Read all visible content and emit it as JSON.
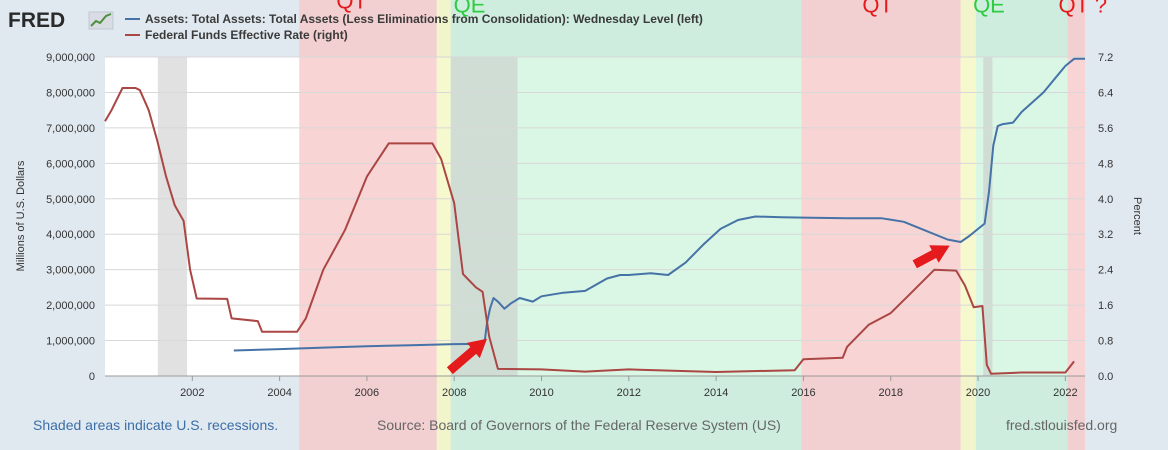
{
  "header": {
    "logo_text": "FRED",
    "logo_icon": "chart-line-icon"
  },
  "footer": {
    "recession_note": "Shaded areas indicate U.S. recessions.",
    "source": "Source: Board of Governors of the Federal Reserve System (US)",
    "site": "fred.stlouisfed.org"
  },
  "colors": {
    "assets": "#4572a7",
    "rate": "#aa4643",
    "qt_band": "#f7c6c6",
    "qe_band": "#c2f0d2",
    "bridge_band": "#f4f7c4",
    "recession_band": "#c8c8c8",
    "qt_label": "#e41a1c",
    "qe_label": "#2ecc40",
    "arrow": "#e41a1c"
  },
  "chart_data": {
    "type": "line",
    "x_range": [
      2000.0,
      2022.45
    ],
    "x_ticks": [
      {
        "value": 2002,
        "label": "2002"
      },
      {
        "value": 2004,
        "label": "2004"
      },
      {
        "value": 2006,
        "label": "2006"
      },
      {
        "value": 2008,
        "label": "2008"
      },
      {
        "value": 2010,
        "label": "2010"
      },
      {
        "value": 2012,
        "label": "2012"
      },
      {
        "value": 2014,
        "label": "2014"
      },
      {
        "value": 2016,
        "label": "2016"
      },
      {
        "value": 2018,
        "label": "2018"
      },
      {
        "value": 2020,
        "label": "2020"
      },
      {
        "value": 2022,
        "label": "2022"
      }
    ],
    "y_left": {
      "label": "Millions of U.S. Dollars",
      "range": [
        0,
        9000000
      ],
      "ticks": [
        {
          "value": 0,
          "label": "0"
        },
        {
          "value": 1000000,
          "label": "1,000,000"
        },
        {
          "value": 2000000,
          "label": "2,000,000"
        },
        {
          "value": 3000000,
          "label": "3,000,000"
        },
        {
          "value": 4000000,
          "label": "4,000,000"
        },
        {
          "value": 5000000,
          "label": "5,000,000"
        },
        {
          "value": 6000000,
          "label": "6,000,000"
        },
        {
          "value": 7000000,
          "label": "7,000,000"
        },
        {
          "value": 8000000,
          "label": "8,000,000"
        },
        {
          "value": 9000000,
          "label": "9,000,000"
        }
      ]
    },
    "y_right": {
      "label": "Percent",
      "range": [
        0,
        7.2
      ],
      "ticks": [
        {
          "value": 0,
          "label": "0.0"
        },
        {
          "value": 0.8,
          "label": "0.8"
        },
        {
          "value": 1.6,
          "label": "1.6"
        },
        {
          "value": 2.4,
          "label": "2.4"
        },
        {
          "value": 3.2,
          "label": "3.2"
        },
        {
          "value": 4.0,
          "label": "4.0"
        },
        {
          "value": 4.8,
          "label": "4.8"
        },
        {
          "value": 5.6,
          "label": "5.6"
        },
        {
          "value": 6.4,
          "label": "6.4"
        },
        {
          "value": 7.2,
          "label": "7.2"
        }
      ]
    },
    "legend_position": "top-left",
    "series": [
      {
        "name": "Assets: Total Assets: Total Assets (Less Eliminations from Consolidation): Wednesday Level (left)",
        "axis": "left",
        "points": [
          [
            2002.95,
            720000
          ],
          [
            2004.0,
            760000
          ],
          [
            2005.0,
            800000
          ],
          [
            2006.0,
            840000
          ],
          [
            2007.0,
            870000
          ],
          [
            2008.0,
            900000
          ],
          [
            2008.6,
            905000
          ],
          [
            2008.7,
            1000000
          ],
          [
            2008.75,
            1500000
          ],
          [
            2008.82,
            1900000
          ],
          [
            2008.9,
            2200000
          ],
          [
            2009.0,
            2100000
          ],
          [
            2009.15,
            1900000
          ],
          [
            2009.3,
            2050000
          ],
          [
            2009.5,
            2200000
          ],
          [
            2009.8,
            2100000
          ],
          [
            2010.0,
            2250000
          ],
          [
            2010.5,
            2350000
          ],
          [
            2011.0,
            2400000
          ],
          [
            2011.5,
            2750000
          ],
          [
            2011.8,
            2850000
          ],
          [
            2012.0,
            2850000
          ],
          [
            2012.5,
            2900000
          ],
          [
            2012.9,
            2850000
          ],
          [
            2013.3,
            3200000
          ],
          [
            2013.7,
            3700000
          ],
          [
            2014.1,
            4150000
          ],
          [
            2014.5,
            4400000
          ],
          [
            2014.9,
            4500000
          ],
          [
            2015.5,
            4480000
          ],
          [
            2016.0,
            4470000
          ],
          [
            2017.0,
            4450000
          ],
          [
            2017.8,
            4450000
          ],
          [
            2018.3,
            4350000
          ],
          [
            2018.8,
            4100000
          ],
          [
            2019.3,
            3850000
          ],
          [
            2019.6,
            3780000
          ],
          [
            2019.8,
            3950000
          ],
          [
            2020.05,
            4200000
          ],
          [
            2020.15,
            4300000
          ],
          [
            2020.25,
            5200000
          ],
          [
            2020.35,
            6500000
          ],
          [
            2020.45,
            7050000
          ],
          [
            2020.55,
            7100000
          ],
          [
            2020.8,
            7150000
          ],
          [
            2021.0,
            7450000
          ],
          [
            2021.5,
            8000000
          ],
          [
            2022.0,
            8750000
          ],
          [
            2022.2,
            8950000
          ],
          [
            2022.45,
            8950000
          ]
        ]
      },
      {
        "name": "Federal Funds Effective Rate (right)",
        "axis": "right",
        "points": [
          [
            2000.0,
            5.75
          ],
          [
            2000.15,
            6.0
          ],
          [
            2000.4,
            6.5
          ],
          [
            2000.7,
            6.5
          ],
          [
            2000.8,
            6.45
          ],
          [
            2001.0,
            6.0
          ],
          [
            2001.2,
            5.3
          ],
          [
            2001.4,
            4.5
          ],
          [
            2001.6,
            3.85
          ],
          [
            2001.8,
            3.5
          ],
          [
            2001.95,
            2.4
          ],
          [
            2002.1,
            1.75
          ],
          [
            2002.8,
            1.74
          ],
          [
            2002.9,
            1.3
          ],
          [
            2003.5,
            1.24
          ],
          [
            2003.6,
            1.0
          ],
          [
            2004.4,
            1.0
          ],
          [
            2004.6,
            1.3
          ],
          [
            2005.0,
            2.4
          ],
          [
            2005.5,
            3.3
          ],
          [
            2006.0,
            4.5
          ],
          [
            2006.5,
            5.25
          ],
          [
            2007.5,
            5.25
          ],
          [
            2007.7,
            4.9
          ],
          [
            2008.0,
            3.9
          ],
          [
            2008.2,
            2.3
          ],
          [
            2008.5,
            2.0
          ],
          [
            2008.65,
            1.9
          ],
          [
            2008.8,
            0.9
          ],
          [
            2009.0,
            0.16
          ],
          [
            2010.0,
            0.15
          ],
          [
            2011.0,
            0.1
          ],
          [
            2012.0,
            0.15
          ],
          [
            2014.0,
            0.09
          ],
          [
            2015.8,
            0.13
          ],
          [
            2016.0,
            0.38
          ],
          [
            2016.9,
            0.41
          ],
          [
            2017.0,
            0.66
          ],
          [
            2017.5,
            1.16
          ],
          [
            2018.0,
            1.42
          ],
          [
            2018.5,
            1.91
          ],
          [
            2019.0,
            2.4
          ],
          [
            2019.5,
            2.38
          ],
          [
            2019.7,
            2.04
          ],
          [
            2019.9,
            1.55
          ],
          [
            2020.1,
            1.58
          ],
          [
            2020.2,
            0.25
          ],
          [
            2020.3,
            0.05
          ],
          [
            2021.0,
            0.08
          ],
          [
            2022.0,
            0.08
          ],
          [
            2022.2,
            0.33
          ]
        ]
      }
    ],
    "regions": [
      {
        "kind": "qt",
        "start": 2004.45,
        "end": 2007.6
      },
      {
        "kind": "bridge",
        "start": 2007.6,
        "end": 2007.92
      },
      {
        "kind": "qe",
        "start": 2007.92,
        "end": 2009.45
      },
      {
        "kind": "qe",
        "start": 2009.45,
        "end": 2015.95
      },
      {
        "kind": "qt",
        "start": 2015.95,
        "end": 2019.6
      },
      {
        "kind": "bridge",
        "start": 2019.6,
        "end": 2019.95
      },
      {
        "kind": "qe",
        "start": 2019.95,
        "end": 2022.05
      },
      {
        "kind": "qt",
        "start": 2022.05,
        "end": 2022.45
      }
    ],
    "recessions": [
      {
        "start": 2001.21,
        "end": 2001.88
      },
      {
        "start": 2007.92,
        "end": 2009.45
      },
      {
        "start": 2020.12,
        "end": 2020.33
      }
    ],
    "annotations": [
      {
        "text": "QT",
        "x": 2005.65,
        "y": 8.3,
        "color_key": "qt_label"
      },
      {
        "text": "QE",
        "x": 2008.35,
        "y": 8.2,
        "color_key": "qe_label"
      },
      {
        "text": "QT",
        "x": 2017.7,
        "y": 8.2,
        "color_key": "qt_label"
      },
      {
        "text": "QE",
        "x": 2020.25,
        "y": 8.2,
        "color_key": "qe_label"
      },
      {
        "text": "QT ?",
        "x": 2022.4,
        "y": 8.2,
        "color_key": "qt_label"
      }
    ],
    "arrows": [
      {
        "tip_x": 2008.75,
        "tip_y": 1050000,
        "tail_x": 2007.9,
        "tail_y": 150000
      },
      {
        "tip_x": 2019.35,
        "tip_y": 3680000,
        "tail_x": 2018.55,
        "tail_y": 3150000
      }
    ]
  }
}
